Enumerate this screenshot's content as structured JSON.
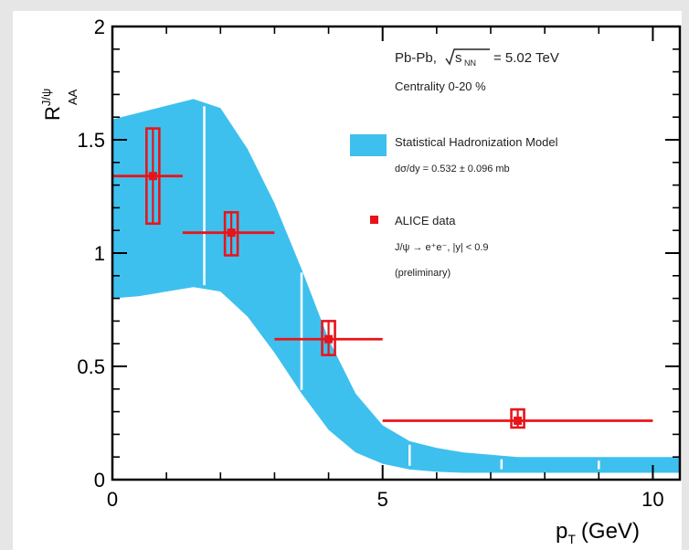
{
  "chart_data": {
    "type": "scatter",
    "xlabel": "p",
    "xlabel_sub": "T",
    "xlabel_unit": "(GeV)",
    "ylabel": "R",
    "ylabel_sub": "AA",
    "ylabel_sup": "J/ψ",
    "xlim": [
      0,
      10.5
    ],
    "ylim": [
      0,
      2
    ],
    "xticks": [
      0,
      5,
      10
    ],
    "xtick_labels": [
      "0",
      "5",
      "10"
    ],
    "yticks": [
      0,
      0.5,
      1,
      1.5,
      2
    ],
    "ytick_labels": [
      "0",
      "0.5",
      "1",
      "1.5",
      "2"
    ],
    "annotations": {
      "system_prefix": "Pb-Pb,",
      "sqrt_label": "s",
      "sqrt_sub": "NN",
      "energy": "= 5.02 TeV",
      "centrality": "Centrality 0-20 %"
    },
    "legend": [
      {
        "name": "Statistical Hadronization Model",
        "detail": "dσ/dy = 0.532 ± 0.096 mb",
        "color": "#3ec0ee",
        "kind": "band"
      },
      {
        "name": "ALICE data",
        "detail": "J/ψ → e⁺e⁻, |y| < 0.9",
        "detail2": "(preliminary)",
        "color": "#e8141a",
        "kind": "marker"
      }
    ],
    "band": {
      "name": "Statistical Hadronization Model",
      "color": "#3ec0ee",
      "x": [
        0.0,
        0.5,
        1.0,
        1.5,
        2.0,
        2.5,
        3.0,
        3.5,
        4.0,
        4.5,
        5.0,
        5.5,
        6.0,
        6.5,
        7.0,
        7.5,
        8.0,
        9.0,
        10.0,
        10.5
      ],
      "upper": [
        1.59,
        1.62,
        1.65,
        1.68,
        1.64,
        1.46,
        1.22,
        0.93,
        0.62,
        0.38,
        0.24,
        0.17,
        0.14,
        0.12,
        0.11,
        0.1,
        0.1,
        0.1,
        0.1,
        0.1
      ],
      "lower": [
        0.8,
        0.81,
        0.83,
        0.85,
        0.83,
        0.72,
        0.56,
        0.38,
        0.22,
        0.12,
        0.07,
        0.045,
        0.035,
        0.03,
        0.03,
        0.03,
        0.03,
        0.03,
        0.03,
        0.03
      ],
      "white_lines_x": [
        1.7,
        3.5,
        5.5,
        7.2,
        9.0
      ]
    },
    "series": [
      {
        "name": "ALICE data",
        "color": "#e8141a",
        "points": [
          {
            "x": 0.75,
            "y": 1.34,
            "xlow": 0.0,
            "xhigh": 1.3,
            "syst_low": 1.13,
            "syst_high": 1.55
          },
          {
            "x": 2.2,
            "y": 1.09,
            "xlow": 1.3,
            "xhigh": 3.0,
            "syst_low": 0.99,
            "syst_high": 1.18
          },
          {
            "x": 4.0,
            "y": 0.62,
            "xlow": 3.0,
            "xhigh": 5.0,
            "syst_low": 0.55,
            "syst_high": 0.7
          },
          {
            "x": 7.5,
            "y": 0.26,
            "xlow": 5.0,
            "xhigh": 10.0,
            "syst_low": 0.23,
            "syst_high": 0.31
          }
        ]
      }
    ]
  }
}
